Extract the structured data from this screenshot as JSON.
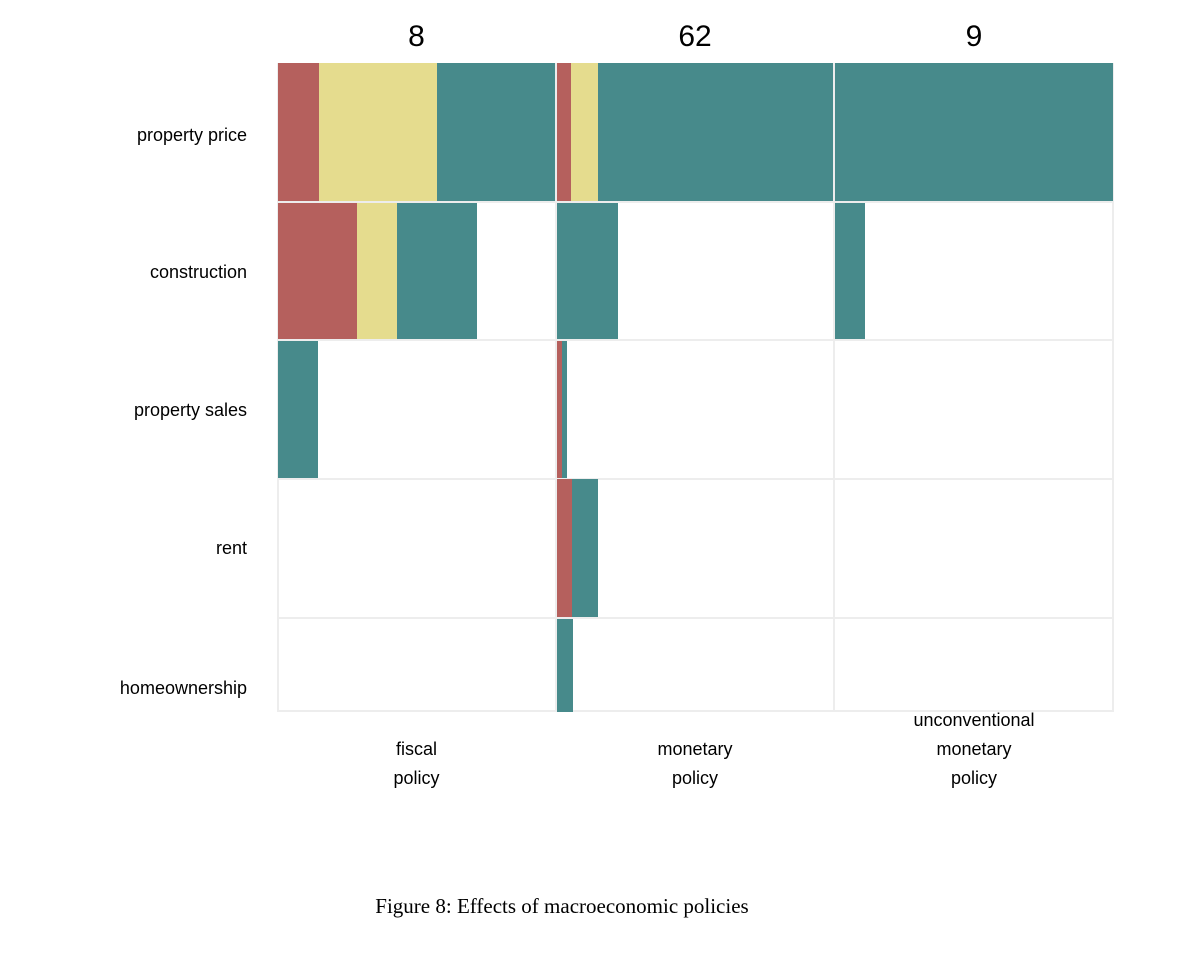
{
  "figure": {
    "caption": "Figure 8: Effects of macroeconomic policies"
  },
  "palette": {
    "red": "#b5605d",
    "yellow": "#e5dc8e",
    "teal": "#478a8b",
    "grid": "#ededed",
    "text": "#000000"
  },
  "chart_data": {
    "type": "mosaic",
    "title": "",
    "legend": "none",
    "columns": [
      {
        "label_lines": [
          "fiscal",
          "policy"
        ],
        "count": "8"
      },
      {
        "label_lines": [
          "monetary",
          "policy"
        ],
        "count": "62"
      },
      {
        "label_lines": [
          "unconventional",
          "monetary",
          "policy"
        ],
        "count": "9"
      }
    ],
    "rows": [
      "property price",
      "construction",
      "property sales",
      "rent",
      "homeownership"
    ],
    "cells": [
      [
        [
          {
            "c": "red",
            "f": 0.148
          },
          {
            "c": "yellow",
            "f": 0.426
          },
          {
            "c": "teal",
            "f": 0.426
          }
        ],
        [
          {
            "c": "red",
            "f": 0.051
          },
          {
            "c": "yellow",
            "f": 0.098
          },
          {
            "c": "teal",
            "f": 0.851
          }
        ],
        [
          {
            "c": "teal",
            "f": 1.0
          }
        ]
      ],
      [
        [
          {
            "c": "red",
            "f": 0.285
          },
          {
            "c": "yellow",
            "f": 0.144
          },
          {
            "c": "teal",
            "f": 0.289
          }
        ],
        [
          {
            "c": "teal",
            "f": 0.221
          }
        ],
        [
          {
            "c": "teal",
            "f": 0.108
          }
        ]
      ],
      [
        [
          {
            "c": "teal",
            "f": 0.144
          }
        ],
        [
          {
            "c": "red",
            "f": 0.018
          },
          {
            "c": "teal",
            "f": 0.018
          }
        ],
        []
      ],
      [
        [],
        [
          {
            "c": "red",
            "f": 0.054
          },
          {
            "c": "teal",
            "f": 0.094
          }
        ],
        []
      ],
      [
        [],
        [
          {
            "c": "teal",
            "f": 0.058
          }
        ],
        []
      ]
    ]
  }
}
